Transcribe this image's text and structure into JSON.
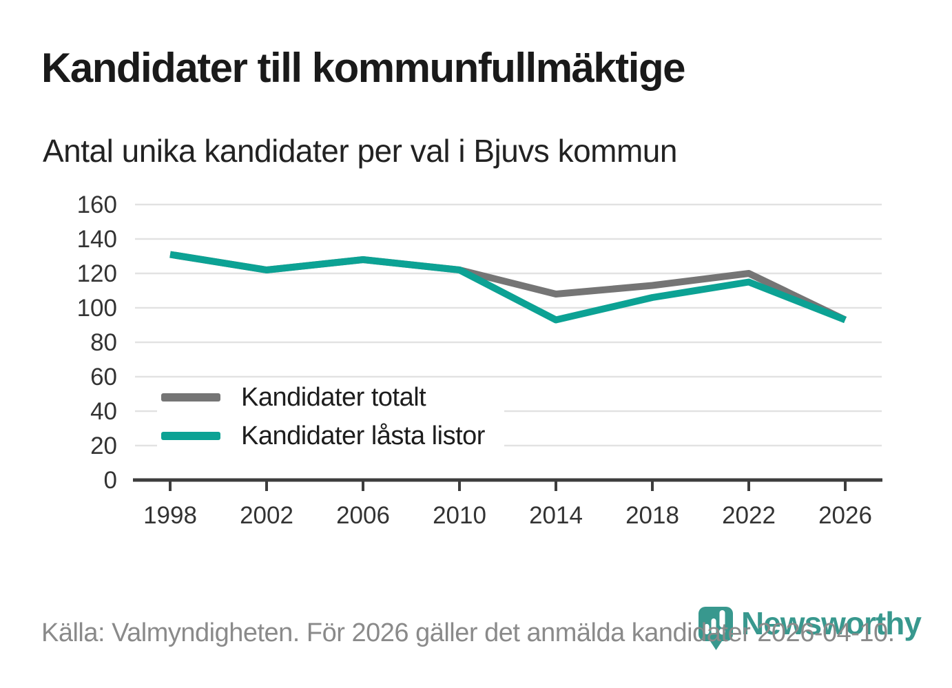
{
  "chart_data": {
    "type": "line",
    "title": "Kandidater till kommunfullmäktige",
    "subtitle": "Antal unika kandidater per val i Bjuvs kommun",
    "categories": [
      "1998",
      "2002",
      "2006",
      "2010",
      "2014",
      "2018",
      "2022",
      "2026"
    ],
    "series": [
      {
        "name": "Kandidater totalt",
        "color": "#757575",
        "values": [
          131,
          122,
          128,
          122,
          108,
          113,
          120,
          93
        ]
      },
      {
        "name": "Kandidater låsta listor",
        "color": "#0CA294",
        "values": [
          131,
          122,
          128,
          122,
          93,
          106,
          115,
          93
        ]
      }
    ],
    "xlabel": "",
    "ylabel": "",
    "ylim": [
      0,
      160
    ],
    "yticks": [
      0,
      20,
      40,
      60,
      80,
      100,
      120,
      140,
      160
    ],
    "grid": "horizontal",
    "legend_position": "inside-bottom-left"
  },
  "footer": {
    "source_text": "Källa: Valmyndigheten. För 2026 gäller det anmälda kandidater 2026-04-10."
  },
  "logo": {
    "wordmark": "Newsworthy",
    "icon_name": "newsworthy-speech-bubble-chart-icon",
    "color": "#38988E"
  },
  "colors": {
    "title": "#1a1a1a",
    "subtitle": "#222222",
    "axis_label": "#333333",
    "gridline": "#e2e2e2",
    "axis_line": "#3d3d3d",
    "legend_text": "#1d1d1d",
    "footer_text": "#8a8a8a",
    "background": "#ffffff",
    "total_line": "#757575",
    "locked_lists_line": "#0CA294",
    "brand_teal": "#38988E"
  }
}
